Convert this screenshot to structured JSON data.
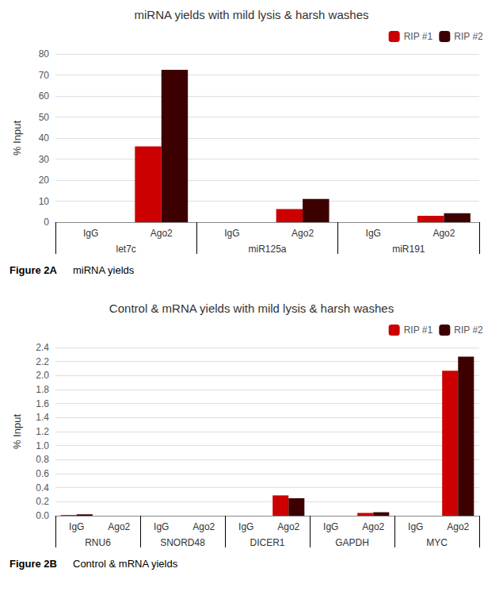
{
  "chart_data": [
    {
      "type": "bar",
      "title": "miRNA yields with mild lysis & harsh washes",
      "ylabel": "% Input",
      "categories": [
        "IgG",
        "Ago2",
        "IgG",
        "Ago2",
        "IgG",
        "Ago2"
      ],
      "groups": [
        "let7c",
        "miR125a",
        "miR191"
      ],
      "series": [
        {
          "name": "RIP #1",
          "color": "#cc0000",
          "values": [
            0,
            36,
            0,
            6.2,
            0,
            3.0
          ]
        },
        {
          "name": "RIP #2",
          "color": "#3d0000",
          "values": [
            0,
            72.5,
            0,
            11.0,
            0,
            4.2
          ]
        }
      ],
      "ylim": [
        0,
        80
      ],
      "yticks": [
        0,
        10,
        20,
        30,
        40,
        50,
        60,
        70,
        80
      ],
      "grid": true,
      "legend": "upper right",
      "annotations": [
        "Figure 2A",
        "miRNA yields"
      ]
    },
    {
      "type": "bar",
      "title": "Control & mRNA yields with mild lysis & harsh washes",
      "ylabel": "% Input",
      "categories": [
        "IgG",
        "Ago2",
        "IgG",
        "Ago2",
        "IgG",
        "Ago2",
        "IgG",
        "Ago2",
        "IgG",
        "Ago2"
      ],
      "groups": [
        "RNU6",
        "SNORD48",
        "DICER1",
        "GAPDH",
        "MYC"
      ],
      "series": [
        {
          "name": "RIP #1",
          "color": "#cc0000",
          "values": [
            0.01,
            0.0,
            0.0,
            0.0,
            0.0,
            0.29,
            0.0,
            0.04,
            0.0,
            2.07
          ]
        },
        {
          "name": "RIP #2",
          "color": "#3d0000",
          "values": [
            0.02,
            0.0,
            0.0,
            0.0,
            0.0,
            0.25,
            0.0,
            0.05,
            0.0,
            2.27
          ]
        }
      ],
      "ylim": [
        0,
        2.4
      ],
      "yticks": [
        {
          "value": 0,
          "label": "0.0"
        },
        0.2,
        0.4,
        0.6,
        0.8,
        {
          "value": 1,
          "label": "1.0"
        },
        1.2,
        1.4,
        1.6,
        1.8,
        {
          "value": 2,
          "label": "2.0"
        },
        2.2,
        2.4
      ],
      "grid": true,
      "legend": "upper right",
      "annotations": [
        "Figure 2B",
        "Control & mRNA yields"
      ]
    }
  ]
}
